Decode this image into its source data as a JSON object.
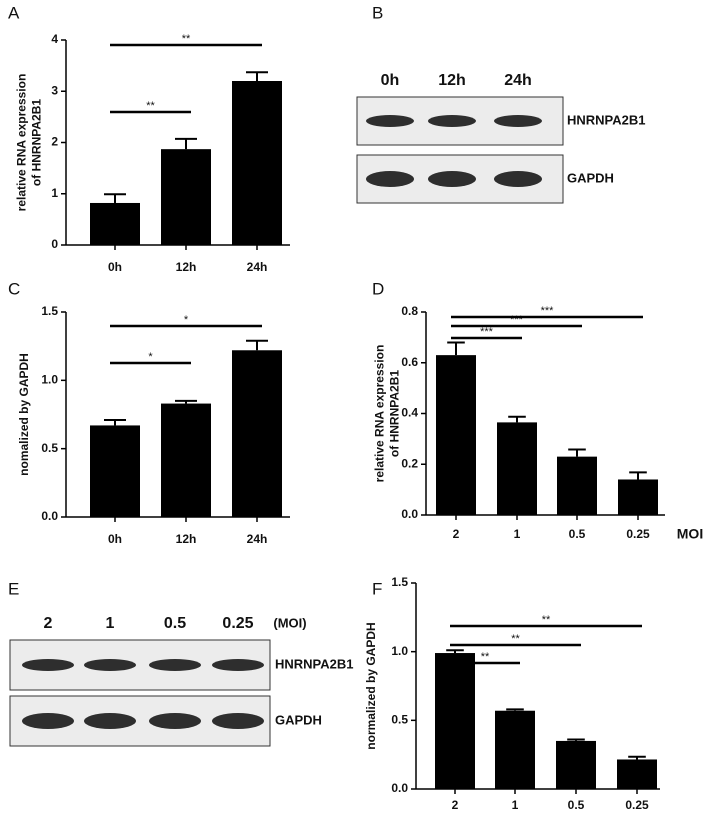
{
  "chart_data": [
    {
      "type": "bar",
      "panel_label": "A",
      "ylabel": [
        "relative RNA expression",
        "of HNRNPA2B1"
      ],
      "categories": [
        "0h",
        "12h",
        "24h"
      ],
      "values": [
        0.82,
        1.87,
        3.2
      ],
      "errors": [
        0.17,
        0.2,
        0.17
      ],
      "color": "#000000",
      "ylim": [
        0,
        4
      ],
      "yticks": [
        0,
        1,
        2,
        3,
        4
      ],
      "annotations": [
        {
          "label": "**",
          "between": [
            "0h",
            "12h"
          ]
        },
        {
          "label": "**",
          "between": [
            "0h",
            "24h"
          ]
        }
      ]
    },
    {
      "type": "bar",
      "panel_label": "C",
      "ylabel": [
        "nomalized by GAPDH"
      ],
      "categories": [
        "0h",
        "12h",
        "24h"
      ],
      "values": [
        0.67,
        0.83,
        1.22
      ],
      "errors": [
        0.04,
        0.02,
        0.07
      ],
      "color": "#000000",
      "ylim": [
        0,
        1.5
      ],
      "yticks": [
        {
          "value": 0,
          "label": "0.0"
        },
        0.5,
        {
          "value": 1,
          "label": "1.0"
        },
        1.5
      ],
      "annotations": [
        {
          "label": "*",
          "between": [
            "0h",
            "12h"
          ]
        },
        {
          "label": "*",
          "between": [
            "0h",
            "24h"
          ]
        }
      ]
    },
    {
      "type": "bar",
      "panel_label": "D",
      "ylabel": [
        "relative RNA expression",
        "of HNRNPA2B1"
      ],
      "xlabel": "MOI",
      "categories": [
        "2",
        "1",
        "0.5",
        "0.25"
      ],
      "values": [
        0.63,
        0.365,
        0.23,
        0.14
      ],
      "errors": [
        0.05,
        0.022,
        0.028,
        0.028
      ],
      "color": "#000000",
      "ylim": [
        0,
        0.8
      ],
      "yticks": [
        {
          "value": 0,
          "label": "0.0"
        },
        0.2,
        0.4,
        0.6,
        0.8
      ],
      "annotations": [
        {
          "label": "***",
          "between": [
            "2",
            "1"
          ]
        },
        {
          "label": "***",
          "between": [
            "2",
            "0.5"
          ]
        },
        {
          "label": "***",
          "between": [
            "2",
            "0.25"
          ]
        }
      ]
    },
    {
      "type": "bar",
      "panel_label": "F",
      "ylabel": [
        "normalized by GAPDH"
      ],
      "categories": [
        "2",
        "1",
        "0.5",
        "0.25"
      ],
      "values": [
        0.99,
        0.57,
        0.35,
        0.215
      ],
      "errors": [
        0.02,
        0.01,
        0.01,
        0.02
      ],
      "color": "#000000",
      "ylim": [
        0,
        1.5
      ],
      "yticks": [
        {
          "value": 0,
          "label": "0.0"
        },
        0.5,
        {
          "value": 1,
          "label": "1.0"
        },
        1.5
      ],
      "annotations": [
        {
          "label": "**",
          "between": [
            "2",
            "1"
          ]
        },
        {
          "label": "**",
          "between": [
            "2",
            "0.5"
          ]
        },
        {
          "label": "**",
          "between": [
            "2",
            "0.25"
          ]
        }
      ]
    }
  ],
  "blots": [
    {
      "panel_label": "B",
      "lanes": [
        "0h",
        "12h",
        "24h"
      ],
      "rows": [
        "HNRNPA2B1",
        "GAPDH"
      ]
    },
    {
      "panel_label": "E",
      "lanes": [
        "2",
        "1",
        "0.5",
        "0.25"
      ],
      "unit": "(MOI)",
      "rows": [
        "HNRNPA2B1",
        "GAPDH"
      ]
    }
  ]
}
